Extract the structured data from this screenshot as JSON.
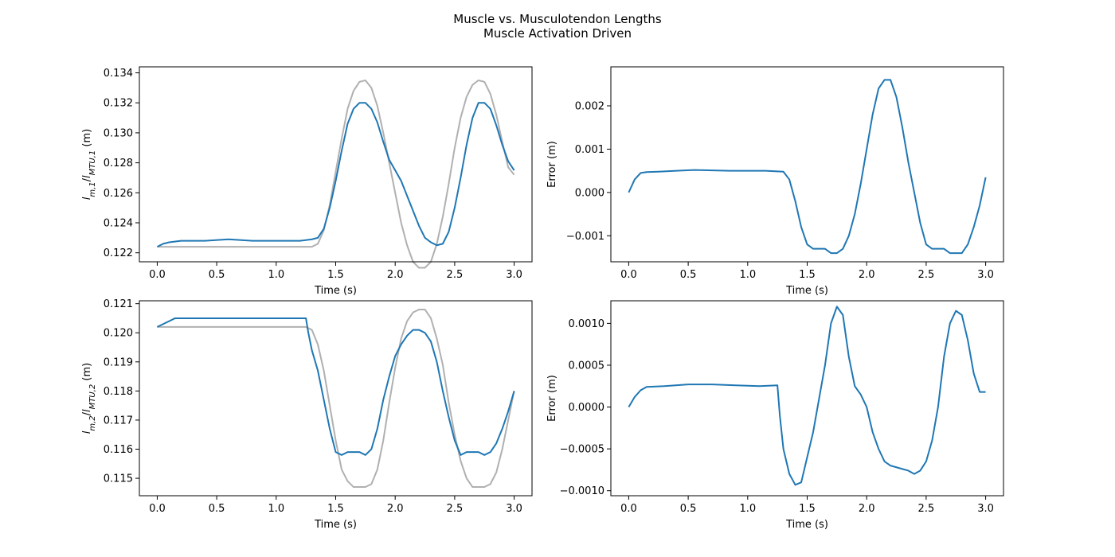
{
  "figure": {
    "title_line1": "Muscle vs. Musculotendon Lengths",
    "title_line2": "Muscle Activation Driven"
  },
  "colors": {
    "measured": "#1f77b4",
    "reference": "#b0b0b0"
  },
  "chart_data": [
    {
      "type": "line",
      "xlabel": "Time (s)",
      "ylabel": "lm,1/lMTU,1 (m)",
      "xlim": [
        -0.15,
        3.15
      ],
      "ylim": [
        0.1214,
        0.1344
      ],
      "xticks": [
        0.0,
        0.5,
        1.0,
        1.5,
        2.0,
        2.5,
        3.0
      ],
      "yticks": [
        0.122,
        0.124,
        0.126,
        0.128,
        0.13,
        0.132,
        0.134
      ],
      "ytick_decimals": 3,
      "grid": false,
      "series": [
        {
          "role": "reference",
          "x": [
            0,
            1.3,
            1.35,
            1.4,
            1.45,
            1.5,
            1.55,
            1.6,
            1.65,
            1.7,
            1.75,
            1.8,
            1.85,
            1.9,
            1.95,
            2.0,
            2.05,
            2.1,
            2.15,
            2.2,
            2.25,
            2.3,
            2.35,
            2.4,
            2.45,
            2.5,
            2.55,
            2.6,
            2.65,
            2.7,
            2.75,
            2.8,
            2.85,
            2.9,
            2.95,
            3.0
          ],
          "y": [
            0.1224,
            0.1224,
            0.1226,
            0.1235,
            0.1252,
            0.1274,
            0.1296,
            0.1316,
            0.1328,
            0.1334,
            0.1335,
            0.133,
            0.1318,
            0.13,
            0.128,
            0.126,
            0.124,
            0.1225,
            0.1214,
            0.121,
            0.121,
            0.1214,
            0.1226,
            0.1244,
            0.1266,
            0.129,
            0.131,
            0.1324,
            0.1332,
            0.1335,
            0.1334,
            0.1326,
            0.1312,
            0.1294,
            0.1277,
            0.1272
          ]
        },
        {
          "role": "measured",
          "x": [
            0,
            0.05,
            0.1,
            0.2,
            0.4,
            0.6,
            0.8,
            1.0,
            1.2,
            1.3,
            1.35,
            1.4,
            1.45,
            1.5,
            1.55,
            1.6,
            1.65,
            1.7,
            1.75,
            1.8,
            1.85,
            1.9,
            1.95,
            2.0,
            2.05,
            2.1,
            2.15,
            2.2,
            2.25,
            2.3,
            2.35,
            2.4,
            2.45,
            2.5,
            2.55,
            2.6,
            2.65,
            2.7,
            2.75,
            2.8,
            2.85,
            2.9,
            2.95,
            3.0
          ],
          "y": [
            0.1224,
            0.1226,
            0.1227,
            0.1228,
            0.1228,
            0.1229,
            0.1228,
            0.1228,
            0.1228,
            0.1229,
            0.123,
            0.1236,
            0.125,
            0.1268,
            0.1288,
            0.1306,
            0.1316,
            0.132,
            0.132,
            0.1316,
            0.1307,
            0.1294,
            0.1282,
            0.1275,
            0.1268,
            0.1258,
            0.1248,
            0.1238,
            0.123,
            0.1227,
            0.1225,
            0.1226,
            0.1234,
            0.125,
            0.127,
            0.1292,
            0.131,
            0.132,
            0.132,
            0.1316,
            0.1305,
            0.1292,
            0.1281,
            0.1275
          ]
        }
      ]
    },
    {
      "type": "line",
      "xlabel": "Time (s)",
      "ylabel": "Error (m)",
      "xlim": [
        -0.15,
        3.15
      ],
      "ylim": [
        -0.0016,
        0.0029
      ],
      "xticks": [
        0.0,
        0.5,
        1.0,
        1.5,
        2.0,
        2.5,
        3.0
      ],
      "yticks": [
        -0.001,
        0.0,
        0.001,
        0.002
      ],
      "ytick_decimals": 3,
      "grid": false,
      "series": [
        {
          "role": "measured",
          "x": [
            0,
            0.05,
            0.1,
            0.15,
            0.25,
            0.4,
            0.55,
            0.7,
            0.85,
            1.0,
            1.15,
            1.3,
            1.35,
            1.4,
            1.45,
            1.5,
            1.55,
            1.6,
            1.65,
            1.7,
            1.75,
            1.8,
            1.85,
            1.9,
            1.95,
            2.0,
            2.05,
            2.1,
            2.15,
            2.2,
            2.25,
            2.3,
            2.35,
            2.4,
            2.45,
            2.5,
            2.55,
            2.6,
            2.65,
            2.7,
            2.75,
            2.8,
            2.85,
            2.9,
            2.95,
            3.0
          ],
          "y": [
            0.0,
            0.0003,
            0.00045,
            0.00047,
            0.00048,
            0.0005,
            0.00052,
            0.00051,
            0.0005,
            0.0005,
            0.0005,
            0.00048,
            0.0003,
            -0.0002,
            -0.0008,
            -0.0012,
            -0.0013,
            -0.0013,
            -0.0013,
            -0.0014,
            -0.0014,
            -0.0013,
            -0.001,
            -0.0005,
            0.0002,
            0.001,
            0.0018,
            0.0024,
            0.0026,
            0.0026,
            0.0022,
            0.0015,
            0.0007,
            0.0,
            -0.0007,
            -0.0012,
            -0.0013,
            -0.0013,
            -0.0013,
            -0.0014,
            -0.0014,
            -0.0014,
            -0.0012,
            -0.0008,
            -0.0003,
            0.00035
          ]
        }
      ]
    },
    {
      "type": "line",
      "xlabel": "Time (s)",
      "ylabel": "lm,2/lMTU,2 (m)",
      "xlim": [
        -0.15,
        3.15
      ],
      "ylim": [
        0.1144,
        0.1211
      ],
      "xticks": [
        0.0,
        0.5,
        1.0,
        1.5,
        2.0,
        2.5,
        3.0
      ],
      "yticks": [
        0.115,
        0.116,
        0.117,
        0.118,
        0.119,
        0.12,
        0.121
      ],
      "ytick_decimals": 3,
      "grid": false,
      "series": [
        {
          "role": "reference",
          "x": [
            0,
            1.25,
            1.3,
            1.35,
            1.4,
            1.45,
            1.5,
            1.55,
            1.6,
            1.65,
            1.7,
            1.75,
            1.8,
            1.85,
            1.9,
            1.95,
            2.0,
            2.05,
            2.1,
            2.15,
            2.2,
            2.25,
            2.3,
            2.35,
            2.4,
            2.45,
            2.5,
            2.55,
            2.6,
            2.65,
            2.7,
            2.75,
            2.8,
            2.85,
            2.9,
            2.95,
            3.0
          ],
          "y": [
            0.1202,
            0.1202,
            0.1201,
            0.1196,
            0.1187,
            0.1175,
            0.1163,
            0.1153,
            0.1149,
            0.1147,
            0.1147,
            0.1147,
            0.1148,
            0.1153,
            0.1163,
            0.1176,
            0.1188,
            0.1198,
            0.1204,
            0.1207,
            0.1208,
            0.1208,
            0.1205,
            0.1198,
            0.1189,
            0.1176,
            0.1165,
            0.1156,
            0.115,
            0.1147,
            0.1147,
            0.1147,
            0.1148,
            0.1152,
            0.116,
            0.117,
            0.118
          ]
        },
        {
          "role": "measured",
          "x": [
            0,
            0.05,
            0.1,
            0.15,
            0.3,
            0.5,
            0.7,
            0.9,
            1.1,
            1.25,
            1.27,
            1.3,
            1.35,
            1.4,
            1.45,
            1.5,
            1.55,
            1.6,
            1.65,
            1.7,
            1.75,
            1.8,
            1.85,
            1.9,
            1.95,
            2.0,
            2.05,
            2.1,
            2.15,
            2.2,
            2.25,
            2.3,
            2.35,
            2.4,
            2.45,
            2.5,
            2.55,
            2.6,
            2.65,
            2.7,
            2.75,
            2.8,
            2.85,
            2.9,
            2.95,
            3.0
          ],
          "y": [
            0.1202,
            0.1203,
            0.1204,
            0.1205,
            0.1205,
            0.1205,
            0.1205,
            0.1205,
            0.1205,
            0.1205,
            0.12,
            0.1194,
            0.1187,
            0.1177,
            0.1167,
            0.1159,
            0.1158,
            0.1159,
            0.1159,
            0.1159,
            0.1158,
            0.116,
            0.1167,
            0.1177,
            0.1185,
            0.1192,
            0.1196,
            0.1199,
            0.1201,
            0.1201,
            0.12,
            0.1197,
            0.119,
            0.118,
            0.1171,
            0.1163,
            0.1158,
            0.1159,
            0.1159,
            0.1159,
            0.1158,
            0.1159,
            0.1162,
            0.1167,
            0.1173,
            0.118
          ]
        }
      ]
    },
    {
      "type": "line",
      "xlabel": "Time (s)",
      "ylabel": "Error (m)",
      "xlim": [
        -0.15,
        3.15
      ],
      "ylim": [
        -0.00106,
        0.00127
      ],
      "xticks": [
        0.0,
        0.5,
        1.0,
        1.5,
        2.0,
        2.5,
        3.0
      ],
      "yticks": [
        -0.001,
        -0.0005,
        0.0,
        0.0005,
        0.001
      ],
      "ytick_decimals": 4,
      "grid": false,
      "series": [
        {
          "role": "measured",
          "x": [
            0,
            0.05,
            0.1,
            0.15,
            0.3,
            0.5,
            0.7,
            0.9,
            1.1,
            1.25,
            1.27,
            1.3,
            1.35,
            1.4,
            1.45,
            1.5,
            1.55,
            1.6,
            1.65,
            1.7,
            1.75,
            1.8,
            1.85,
            1.9,
            1.95,
            2.0,
            2.05,
            2.1,
            2.15,
            2.2,
            2.25,
            2.3,
            2.35,
            2.4,
            2.45,
            2.5,
            2.55,
            2.6,
            2.65,
            2.7,
            2.75,
            2.8,
            2.85,
            2.9,
            2.95,
            3.0
          ],
          "y": [
            0.0,
            0.00012,
            0.0002,
            0.00024,
            0.00025,
            0.00027,
            0.00027,
            0.00026,
            0.00025,
            0.00026,
            -0.0001,
            -0.0005,
            -0.0008,
            -0.00093,
            -0.0009,
            -0.0006,
            -0.0003,
            0.0001,
            0.0005,
            0.001,
            0.0012,
            0.0011,
            0.0006,
            0.00025,
            0.00015,
            0.0,
            -0.0003,
            -0.0005,
            -0.00065,
            -0.0007,
            -0.00072,
            -0.00074,
            -0.00076,
            -0.0008,
            -0.00076,
            -0.00065,
            -0.0004,
            0.0,
            0.0006,
            0.001,
            0.00115,
            0.0011,
            0.0008,
            0.0004,
            0.00018,
            0.00018
          ]
        }
      ]
    }
  ]
}
